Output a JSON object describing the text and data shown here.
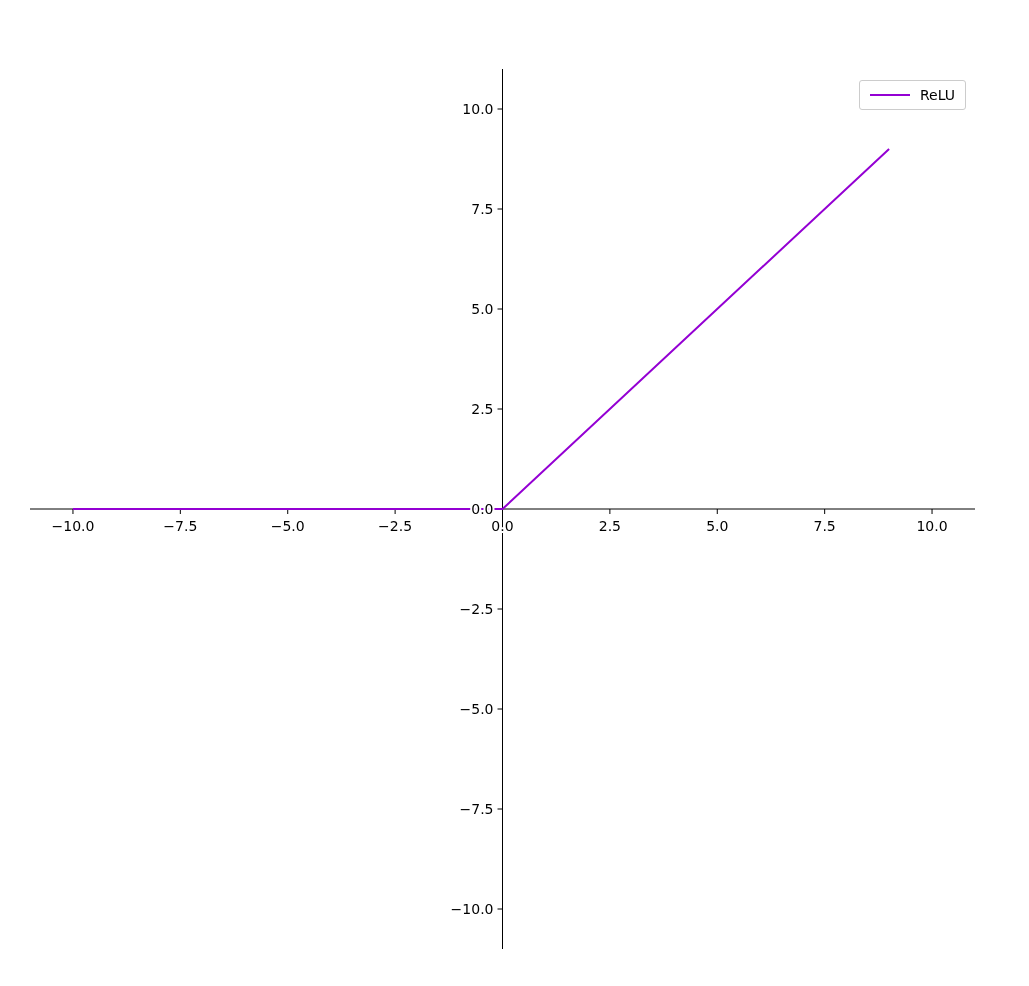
{
  "chart_data": {
    "type": "line",
    "x": [
      -10,
      0,
      9
    ],
    "series": [
      {
        "name": "ReLU",
        "color": "#9400d3",
        "values": [
          0,
          0,
          9
        ]
      }
    ],
    "xlim": [
      -11,
      11
    ],
    "ylim": [
      -11,
      11
    ],
    "xticks": [
      {
        "value": -10,
        "label": "−10.0"
      },
      {
        "value": -7.5,
        "label": "−7.5"
      },
      {
        "value": -5,
        "label": "−5.0"
      },
      {
        "value": -2.5,
        "label": "−2.5"
      },
      {
        "value": 0,
        "label": "0.0"
      },
      {
        "value": 2.5,
        "label": "2.5"
      },
      {
        "value": 5,
        "label": "5.0"
      },
      {
        "value": 7.5,
        "label": "7.5"
      },
      {
        "value": 10,
        "label": "10.0"
      }
    ],
    "yticks": [
      {
        "value": -10,
        "label": "−10.0"
      },
      {
        "value": -7.5,
        "label": "−7.5"
      },
      {
        "value": -5,
        "label": "−5.0"
      },
      {
        "value": -2.5,
        "label": "−2.5"
      },
      {
        "value": 0,
        "label": "0.0"
      },
      {
        "value": 2.5,
        "label": "2.5"
      },
      {
        "value": 5,
        "label": "5.0"
      },
      {
        "value": 7.5,
        "label": "7.5"
      },
      {
        "value": 10,
        "label": "10.0"
      }
    ],
    "legend": "top right",
    "grid": false,
    "marker": "none",
    "line_style": "solid"
  }
}
